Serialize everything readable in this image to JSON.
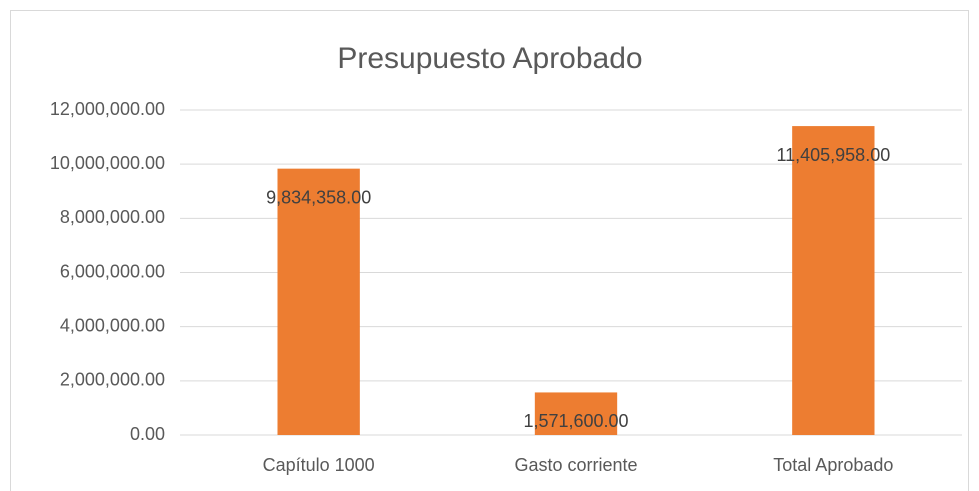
{
  "chart_data": {
    "type": "bar",
    "title": "Presupuesto Aprobado",
    "categories": [
      "Capítulo 1000",
      "Gasto corriente",
      "Total Aprobado"
    ],
    "values": [
      9834358,
      1571600,
      11405958
    ],
    "value_labels": [
      "9,834,358.00",
      "1,571,600.00",
      "11,405,958.00"
    ],
    "color": "#ed7d31",
    "ylim": [
      0,
      12000000
    ],
    "yticks": [
      {
        "value": 0,
        "label": "0.00"
      },
      {
        "value": 2000000,
        "label": "2,000,000.00"
      },
      {
        "value": 4000000,
        "label": "4,000,000.00"
      },
      {
        "value": 6000000,
        "label": "6,000,000.00"
      },
      {
        "value": 8000000,
        "label": "8,000,000.00"
      },
      {
        "value": 10000000,
        "label": "10,000,000.00"
      },
      {
        "value": 12000000,
        "label": "12,000,000.00"
      }
    ],
    "grid": true
  }
}
